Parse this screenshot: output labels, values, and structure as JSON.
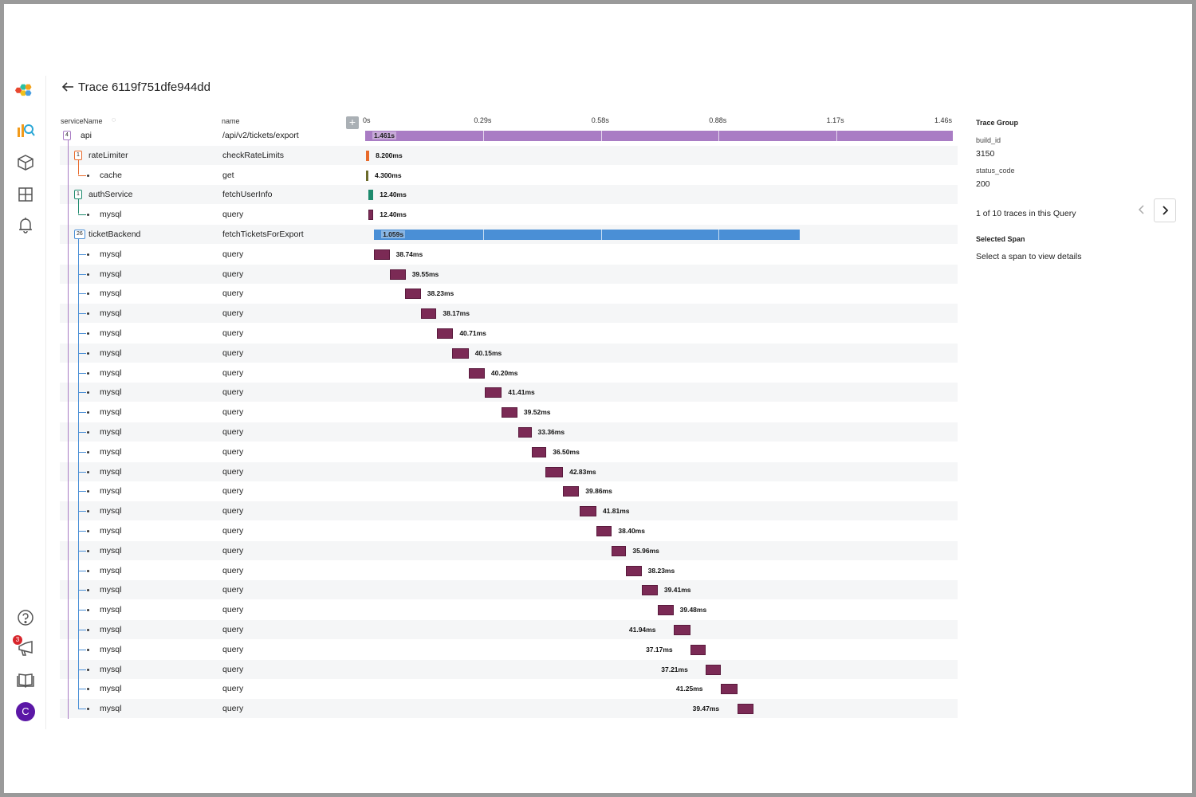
{
  "trace": {
    "title": "Trace 6119f751dfe944dd"
  },
  "columns": {
    "service": "serviceName",
    "name": "name"
  },
  "timeline": {
    "ticks": [
      "0s",
      "0.29s",
      "0.58s",
      "0.88s",
      "1.17s",
      "1.46s"
    ],
    "total_seconds": 1.461
  },
  "spans": [
    {
      "service": "api",
      "name": "/api/v2/tickets/export",
      "depth": 0,
      "count": "4",
      "start": 0,
      "duration": 1.461,
      "label": "1.461s",
      "color": "#a97cc4"
    },
    {
      "service": "rateLimiter",
      "name": "checkRateLimits",
      "depth": 1,
      "count": "1",
      "start": 0.0,
      "duration": 0.0082,
      "label": "8.200ms",
      "color": "#e86a2b"
    },
    {
      "service": "cache",
      "name": "get",
      "depth": 2,
      "start": 0.0,
      "duration": 0.0043,
      "label": "4.300ms",
      "color": "#6b6b2b"
    },
    {
      "service": "authService",
      "name": "fetchUserInfo",
      "depth": 1,
      "count": "1",
      "start": 0.006,
      "duration": 0.0124,
      "label": "12.40ms",
      "color": "#1d8a6d"
    },
    {
      "service": "mysql",
      "name": "query",
      "depth": 2,
      "start": 0.006,
      "duration": 0.0124,
      "label": "12.40ms",
      "color": "#7b2a55"
    },
    {
      "service": "ticketBackend",
      "name": "fetchTicketsForExport",
      "depth": 1,
      "count": "26",
      "start": 0.02,
      "duration": 1.059,
      "label": "1.059s",
      "color": "#4a8fd6"
    },
    {
      "service": "mysql",
      "name": "query",
      "depth": 2,
      "start": 0.02,
      "duration": 0.03874,
      "label": "38.74ms",
      "color": "#7b2a55"
    },
    {
      "service": "mysql",
      "name": "query",
      "depth": 2,
      "start": 0.059,
      "duration": 0.03955,
      "label": "39.55ms",
      "color": "#7b2a55"
    },
    {
      "service": "mysql",
      "name": "query",
      "depth": 2,
      "start": 0.098,
      "duration": 0.03823,
      "label": "38.23ms",
      "color": "#7b2a55"
    },
    {
      "service": "mysql",
      "name": "query",
      "depth": 2,
      "start": 0.137,
      "duration": 0.03817,
      "label": "38.17ms",
      "color": "#7b2a55"
    },
    {
      "service": "mysql",
      "name": "query",
      "depth": 2,
      "start": 0.176,
      "duration": 0.04071,
      "label": "40.71ms",
      "color": "#7b2a55"
    },
    {
      "service": "mysql",
      "name": "query",
      "depth": 2,
      "start": 0.215,
      "duration": 0.04015,
      "label": "40.15ms",
      "color": "#7b2a55"
    },
    {
      "service": "mysql",
      "name": "query",
      "depth": 2,
      "start": 0.255,
      "duration": 0.0402,
      "label": "40.20ms",
      "color": "#7b2a55"
    },
    {
      "service": "mysql",
      "name": "query",
      "depth": 2,
      "start": 0.296,
      "duration": 0.04141,
      "label": "41.41ms",
      "color": "#7b2a55"
    },
    {
      "service": "mysql",
      "name": "query",
      "depth": 2,
      "start": 0.337,
      "duration": 0.03952,
      "label": "39.52ms",
      "color": "#7b2a55"
    },
    {
      "service": "mysql",
      "name": "query",
      "depth": 2,
      "start": 0.378,
      "duration": 0.03336,
      "label": "33.36ms",
      "color": "#7b2a55"
    },
    {
      "service": "mysql",
      "name": "query",
      "depth": 2,
      "start": 0.412,
      "duration": 0.0365,
      "label": "36.50ms",
      "color": "#7b2a55"
    },
    {
      "service": "mysql",
      "name": "query",
      "depth": 2,
      "start": 0.447,
      "duration": 0.04283,
      "label": "42.83ms",
      "color": "#7b2a55"
    },
    {
      "service": "mysql",
      "name": "query",
      "depth": 2,
      "start": 0.49,
      "duration": 0.03986,
      "label": "39.86ms",
      "color": "#7b2a55"
    },
    {
      "service": "mysql",
      "name": "query",
      "depth": 2,
      "start": 0.531,
      "duration": 0.04181,
      "label": "41.81ms",
      "color": "#7b2a55"
    },
    {
      "service": "mysql",
      "name": "query",
      "depth": 2,
      "start": 0.573,
      "duration": 0.0384,
      "label": "38.40ms",
      "color": "#7b2a55"
    },
    {
      "service": "mysql",
      "name": "query",
      "depth": 2,
      "start": 0.611,
      "duration": 0.03596,
      "label": "35.96ms",
      "color": "#7b2a55"
    },
    {
      "service": "mysql",
      "name": "query",
      "depth": 2,
      "start": 0.647,
      "duration": 0.03823,
      "label": "38.23ms",
      "color": "#7b2a55"
    },
    {
      "service": "mysql",
      "name": "query",
      "depth": 2,
      "start": 0.686,
      "duration": 0.03941,
      "label": "39.41ms",
      "color": "#7b2a55"
    },
    {
      "service": "mysql",
      "name": "query",
      "depth": 2,
      "start": 0.725,
      "duration": 0.03948,
      "label": "39.48ms",
      "color": "#7b2a55"
    },
    {
      "service": "mysql",
      "name": "query",
      "depth": 2,
      "start": 0.765,
      "duration": 0.04194,
      "label": "41.94ms",
      "color": "#7b2a55"
    },
    {
      "service": "mysql",
      "name": "query",
      "depth": 2,
      "start": 0.807,
      "duration": 0.03717,
      "label": "37.17ms",
      "color": "#7b2a55"
    },
    {
      "service": "mysql",
      "name": "query",
      "depth": 2,
      "start": 0.845,
      "duration": 0.03721,
      "label": "37.21ms",
      "color": "#7b2a55"
    },
    {
      "service": "mysql",
      "name": "query",
      "depth": 2,
      "start": 0.882,
      "duration": 0.04125,
      "label": "41.25ms",
      "color": "#7b2a55"
    },
    {
      "service": "mysql",
      "name": "query",
      "depth": 2,
      "start": 0.923,
      "duration": 0.03947,
      "label": "39.47ms",
      "color": "#7b2a55"
    }
  ],
  "right_panel": {
    "trace_group": "Trace Group",
    "build_id_key": "build_id",
    "build_id_value": "3150",
    "status_code_key": "status_code",
    "status_code_value": "200",
    "pager_text": "1 of 10 traces in this Query",
    "selected_span_title": "Selected Span",
    "selected_span_hint": "Select a span to view details"
  },
  "nav": {
    "badge_count": "3",
    "avatar_initial": "C",
    "icons": [
      "honeycomb-logo",
      "query-icon",
      "datasets-icon",
      "boards-icon",
      "triggers-icon",
      "help-icon",
      "announcements-icon",
      "docs-icon",
      "user-avatar"
    ]
  }
}
